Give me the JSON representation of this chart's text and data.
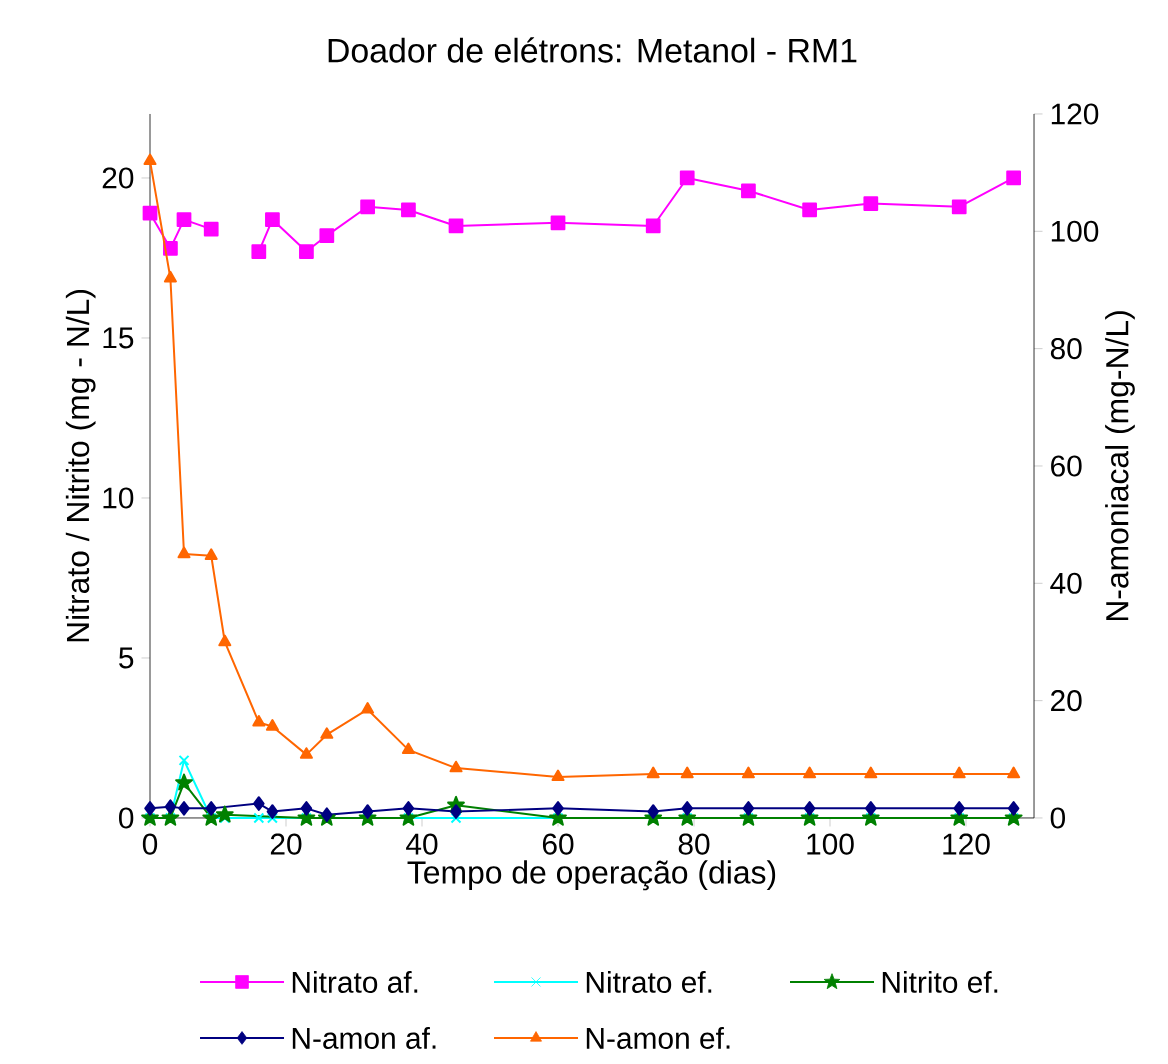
{
  "chart_data": {
    "type": "line",
    "title": "Doador de elétrons: Metanol - RM1",
    "xlabel": "Tempo de operação (dias)",
    "ylabel": "Nitrato / Nitrito (mg - N/L)",
    "y2label": "N-amoniacal (mg-N/L)",
    "xlim": [
      0,
      130
    ],
    "xticks": [
      0,
      20,
      40,
      60,
      80,
      100,
      120
    ],
    "ylim": [
      0,
      22
    ],
    "yticks": [
      0,
      5,
      10,
      15,
      20
    ],
    "y2lim": [
      0,
      120
    ],
    "y2ticks": [
      0,
      20,
      40,
      60,
      80,
      100,
      120
    ],
    "legend": "bottom",
    "line_style": "solid",
    "series": [
      {
        "name": "Nitrato af.",
        "color": "#ff00ff",
        "marker": "square",
        "x": [
          0,
          3,
          5,
          9,
          11,
          16,
          18,
          23,
          26,
          32,
          38,
          45,
          60,
          74,
          79,
          88,
          97,
          106,
          119,
          127
        ],
        "values": [
          18.9,
          17.8,
          18.7,
          18.4,
          null,
          17.7,
          18.7,
          17.7,
          18.2,
          19.1,
          19.0,
          18.5,
          18.6,
          18.5,
          20.0,
          19.6,
          19.0,
          19.2,
          19.1,
          20.0
        ]
      },
      {
        "name": "Nitrato ef.",
        "color": "#00ffff",
        "marker": "cross",
        "x": [
          0,
          3,
          5,
          9,
          11,
          16,
          18,
          23,
          26,
          32,
          38,
          45,
          60,
          74,
          79,
          88,
          97,
          106,
          119,
          127
        ],
        "values": [
          0,
          0,
          1.8,
          0,
          0,
          0,
          0,
          0,
          0,
          0,
          0,
          0,
          0,
          0,
          0,
          0,
          0,
          0,
          0,
          0
        ]
      },
      {
        "name": "Nitrito ef.",
        "color": "#008000",
        "marker": "star",
        "x": [
          0,
          3,
          5,
          9,
          11,
          23,
          26,
          32,
          38,
          45,
          60,
          74,
          79,
          88,
          97,
          106,
          119,
          127
        ],
        "values": [
          0,
          0,
          1.1,
          0,
          0.1,
          0,
          0,
          0,
          0,
          0.4,
          0,
          0,
          0,
          0,
          0,
          0,
          0,
          0
        ]
      },
      {
        "name": "N-amon af.",
        "color": "#000080",
        "marker": "diamond",
        "x": [
          0,
          3,
          5,
          9,
          16,
          18,
          23,
          26,
          32,
          38,
          45,
          60,
          74,
          79,
          88,
          97,
          106,
          119,
          127
        ],
        "values": [
          0.3,
          0.35,
          0.3,
          0.3,
          0.45,
          0.2,
          0.3,
          0.1,
          0.2,
          0.3,
          0.2,
          0.3,
          0.2,
          0.3,
          0.3,
          0.3,
          0.3,
          0.3,
          0.3
        ]
      },
      {
        "name": "N-amon ef.",
        "color": "#ff6600",
        "marker": "triangle",
        "axis": "y2",
        "x": [
          0,
          3,
          5,
          9,
          11,
          16,
          18,
          23,
          26,
          32,
          38,
          45,
          60,
          74,
          79,
          88,
          97,
          106,
          119,
          127
        ],
        "values": [
          112,
          92,
          45,
          44.7,
          30,
          16.3,
          15.6,
          10.8,
          14.2,
          18.5,
          11.6,
          8.5,
          7,
          7.5,
          7.5,
          7.5,
          7.5,
          7.5,
          7.5,
          7.5
        ]
      }
    ]
  }
}
